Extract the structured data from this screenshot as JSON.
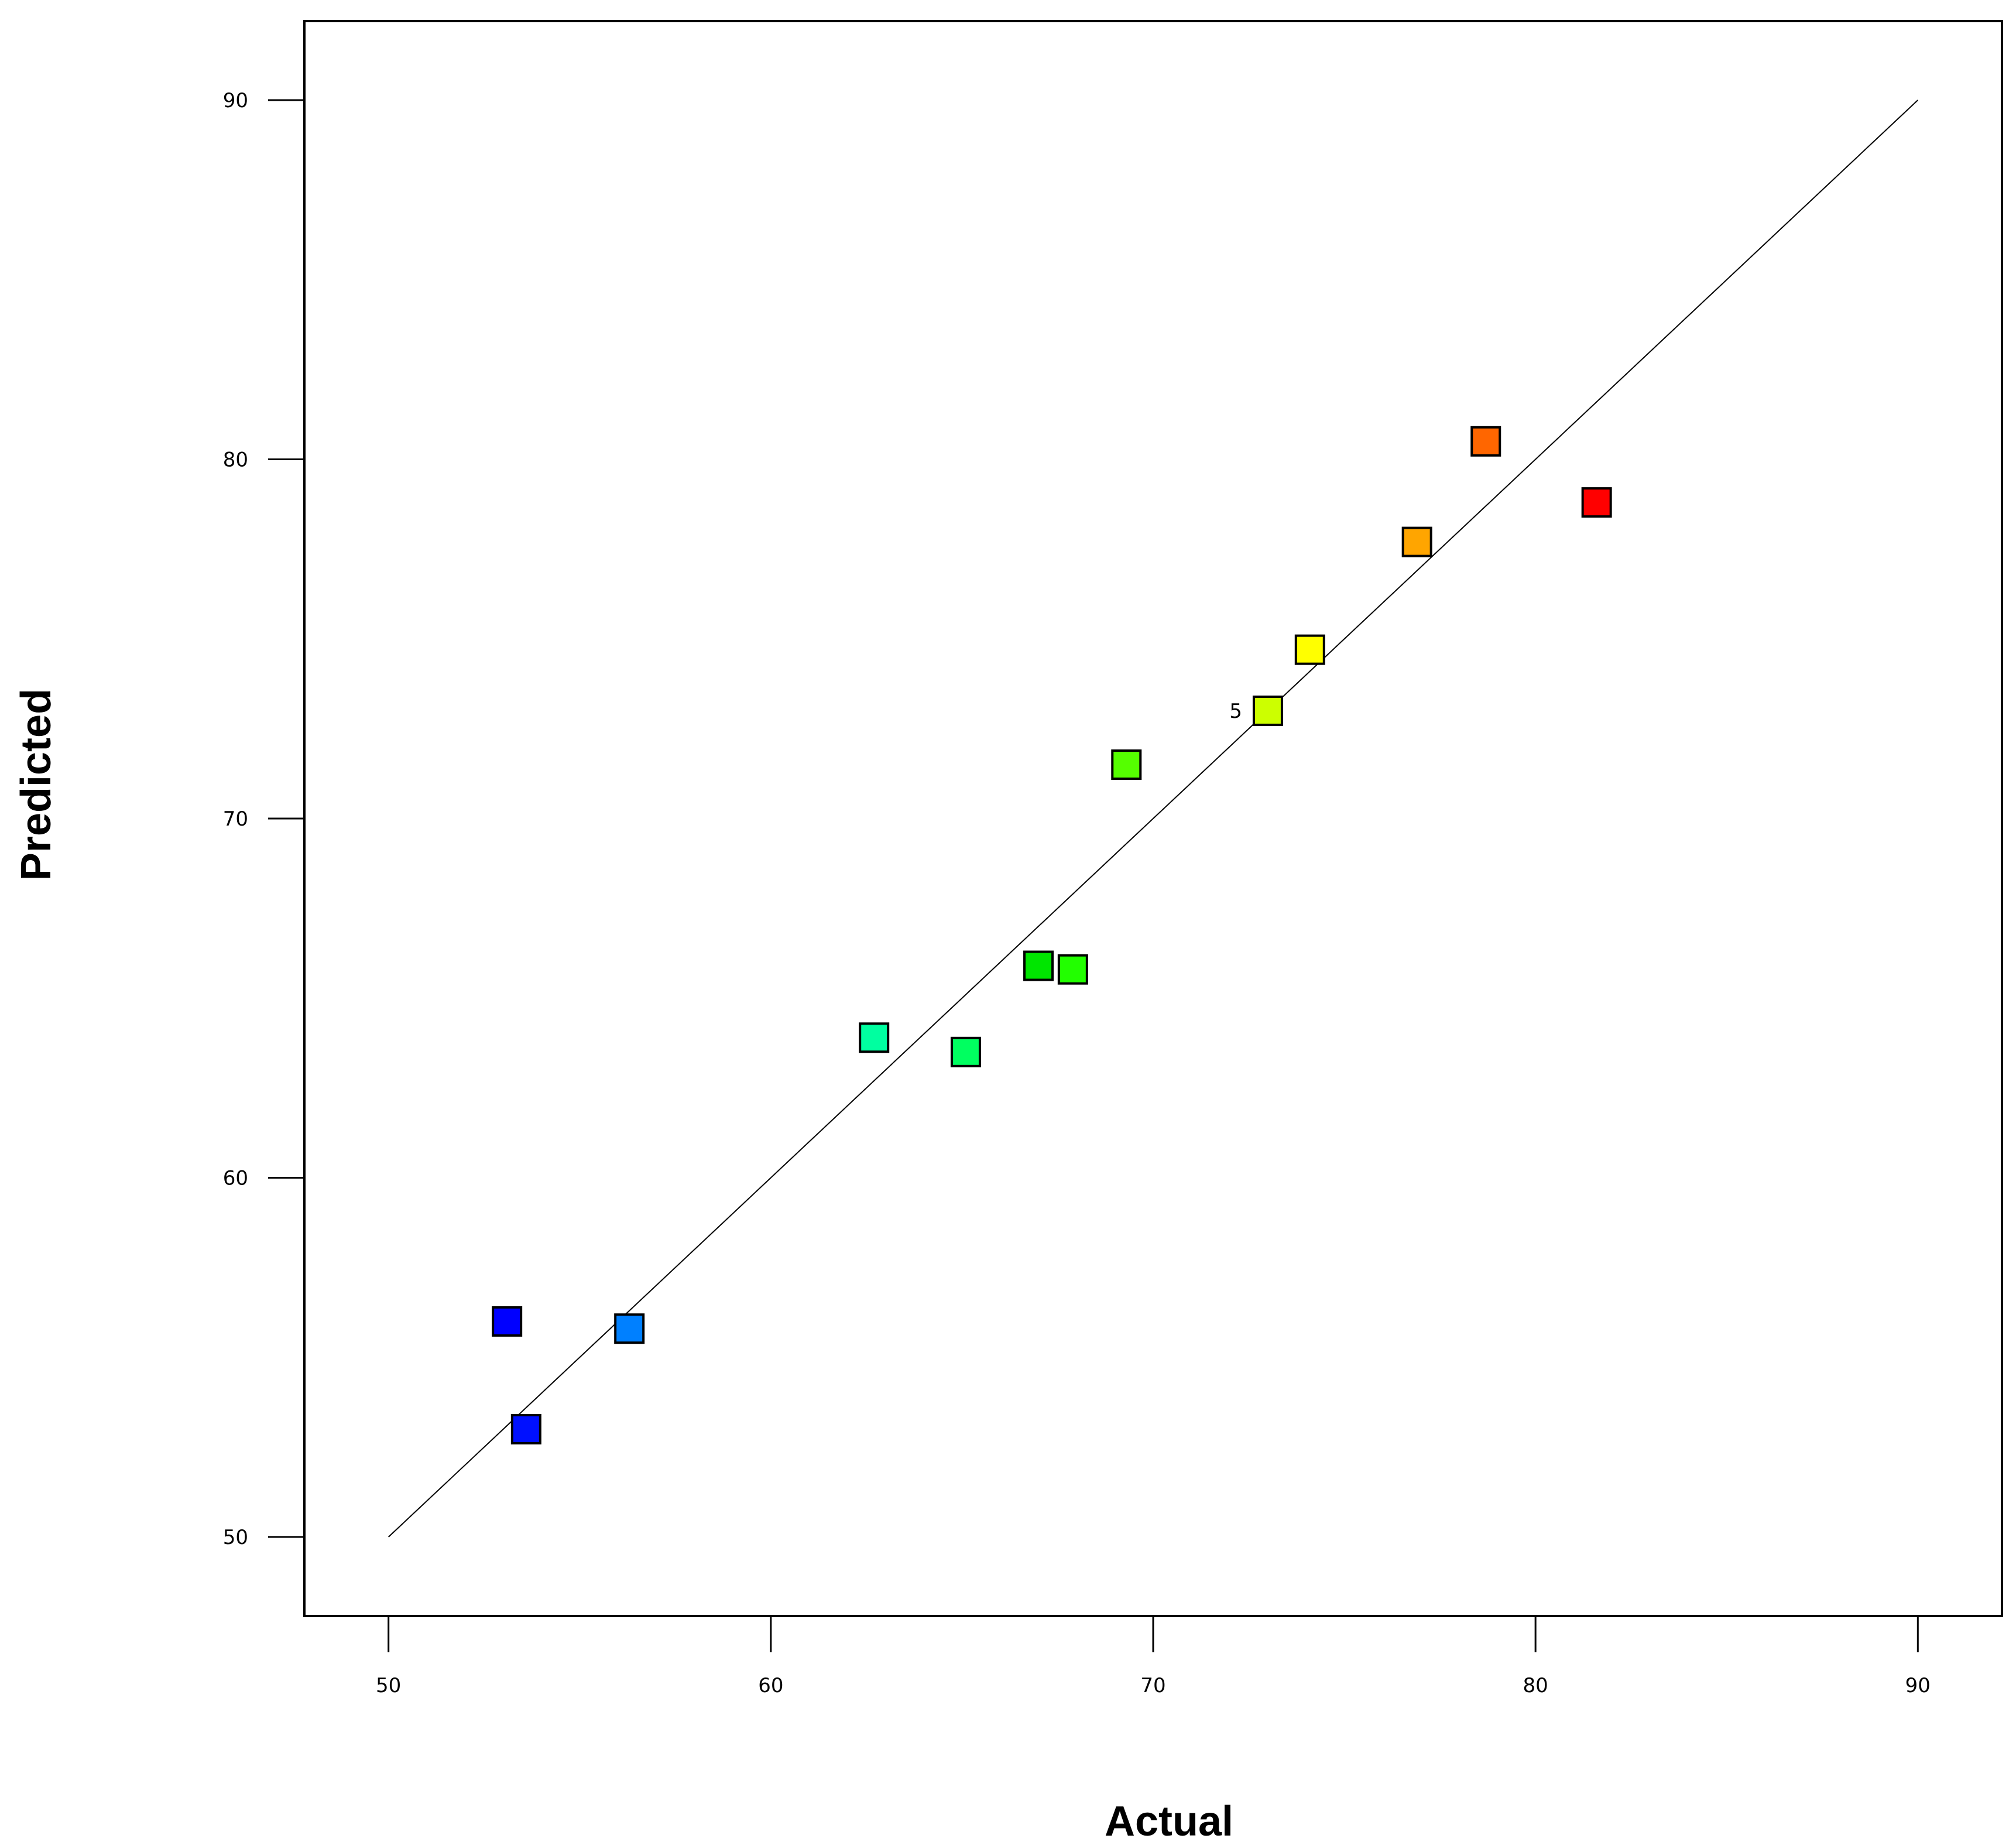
{
  "chart_data": {
    "type": "scatter",
    "title": "",
    "xlabel": "Actual",
    "ylabel": "Predicted",
    "xlim": [
      47.8,
      92.2
    ],
    "ylim": [
      47.8,
      92.2
    ],
    "x_ticks": [
      50,
      60,
      70,
      80,
      90
    ],
    "y_ticks": [
      50,
      60,
      70,
      80,
      90
    ],
    "reference_line": {
      "from": [
        50,
        50
      ],
      "to": [
        90,
        90
      ]
    },
    "marker": "square",
    "points": [
      {
        "x": 53.1,
        "y": 56.0,
        "color": "#0000ff"
      },
      {
        "x": 53.6,
        "y": 53.0,
        "color": "#0010ff"
      },
      {
        "x": 56.3,
        "y": 55.8,
        "color": "#0080ff"
      },
      {
        "x": 62.7,
        "y": 63.9,
        "color": "#00ffa0"
      },
      {
        "x": 65.1,
        "y": 63.5,
        "color": "#00ff60"
      },
      {
        "x": 67.0,
        "y": 65.9,
        "color": "#00e600"
      },
      {
        "x": 67.9,
        "y": 65.8,
        "color": "#22ff00"
      },
      {
        "x": 69.3,
        "y": 71.5,
        "color": "#55ff00"
      },
      {
        "x": 73.0,
        "y": 73.0,
        "color": "#ccff00",
        "label": "5"
      },
      {
        "x": 74.1,
        "y": 74.7,
        "color": "#ffff00"
      },
      {
        "x": 76.9,
        "y": 77.7,
        "color": "#ffa500"
      },
      {
        "x": 78.7,
        "y": 80.5,
        "color": "#ff6600"
      },
      {
        "x": 81.6,
        "y": 78.8,
        "color": "#ff0000"
      }
    ]
  }
}
